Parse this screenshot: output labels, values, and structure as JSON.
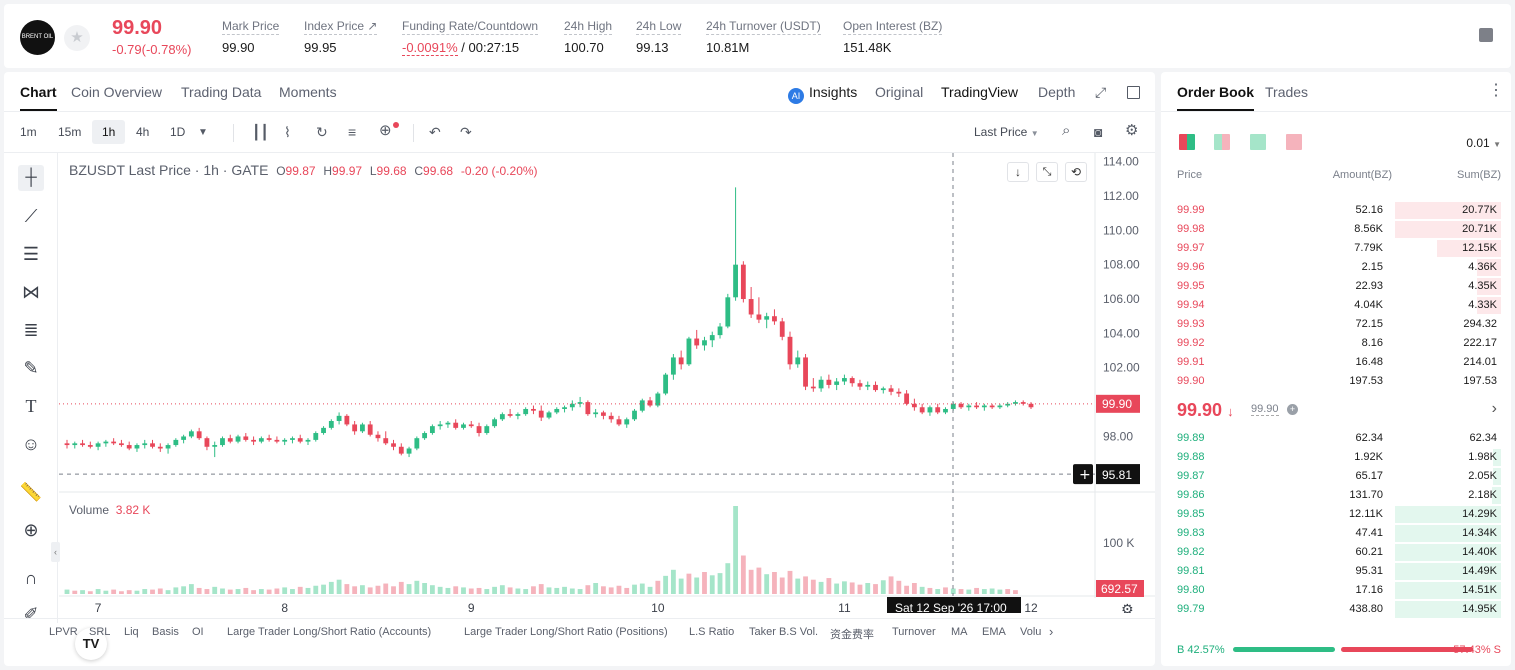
{
  "ticker": {
    "logo_text": "BRENT OIL",
    "last_price": "99.90",
    "change": "-0.79(-0.78%)",
    "stats": [
      {
        "label": "Mark Price",
        "value": "99.90"
      },
      {
        "label": "Index Price ↗",
        "value": "99.95"
      },
      {
        "label": "Funding Rate/Countdown",
        "value_red": "-0.0091%",
        "value": " / 00:27:15"
      },
      {
        "label": "24h High",
        "value": "100.70"
      },
      {
        "label": "24h Low",
        "value": "99.13"
      },
      {
        "label": "24h Turnover (USDT)",
        "value": "10.81M"
      },
      {
        "label": "Open Interest (BZ)",
        "value": "151.48K"
      }
    ]
  },
  "chart_tabs": [
    "Chart",
    "Coin Overview",
    "Trading Data",
    "Moments"
  ],
  "view_tabs": {
    "insights": "Insights",
    "original": "Original",
    "tradingview": "TradingView",
    "depth": "Depth"
  },
  "timeframes": [
    "1m",
    "15m",
    "1h",
    "4h",
    "1D"
  ],
  "price_type": "Last Price",
  "legend": {
    "symbol": "BZUSDT Last Price · 1h · GATE",
    "o_label": "O",
    "o": "99.87",
    "h_label": "H",
    "h": "99.97",
    "l_label": "L",
    "l": "99.68",
    "c_label": "C",
    "c": "99.68",
    "chg": "-0.20 (-0.20%)"
  },
  "volume_label": "Volume",
  "volume_value": "3.82 K",
  "crosshair_time": "Sat 12 Sep '26   17:00",
  "crosshair_price": "95.81",
  "last_price_tag": "99.90",
  "volume_tag": "692.57",
  "volume_axis_tick": "100 K",
  "indicators": [
    "LPVR",
    "SRL",
    "Liq",
    "Basis",
    "OI",
    "Large Trader Long/Short Ratio (Accounts)",
    "Large Trader Long/Short Ratio (Positions)",
    "L.S Ratio",
    "Taker B.S Vol.",
    "资金费率",
    "Turnover",
    "MA",
    "EMA",
    "Volu"
  ],
  "chart_data": {
    "type": "candlestick",
    "y_axis_ticks": [
      "114.00",
      "112.00",
      "110.00",
      "108.00",
      "106.00",
      "104.00",
      "102.00",
      "100.00",
      "98.00"
    ],
    "x_axis_ticks": [
      "7",
      "8",
      "9",
      "10",
      "11",
      "12"
    ],
    "ylim": [
      95.0,
      114.5
    ],
    "interval": "1h",
    "candles": [
      {
        "o": 97.6,
        "h": 97.8,
        "l": 97.3,
        "c": 97.5
      },
      {
        "o": 97.5,
        "h": 97.7,
        "l": 97.3,
        "c": 97.6
      },
      {
        "o": 97.6,
        "h": 97.8,
        "l": 97.4,
        "c": 97.5
      },
      {
        "o": 97.5,
        "h": 97.7,
        "l": 97.3,
        "c": 97.4
      },
      {
        "o": 97.4,
        "h": 97.7,
        "l": 97.2,
        "c": 97.6
      },
      {
        "o": 97.6,
        "h": 97.8,
        "l": 97.4,
        "c": 97.7
      },
      {
        "o": 97.7,
        "h": 97.9,
        "l": 97.5,
        "c": 97.6
      },
      {
        "o": 97.6,
        "h": 97.8,
        "l": 97.4,
        "c": 97.5
      },
      {
        "o": 97.5,
        "h": 97.7,
        "l": 97.2,
        "c": 97.3
      },
      {
        "o": 97.3,
        "h": 97.6,
        "l": 97.1,
        "c": 97.5
      },
      {
        "o": 97.5,
        "h": 97.8,
        "l": 97.3,
        "c": 97.6
      },
      {
        "o": 97.6,
        "h": 97.8,
        "l": 97.3,
        "c": 97.4
      },
      {
        "o": 97.4,
        "h": 97.6,
        "l": 97.1,
        "c": 97.3
      },
      {
        "o": 97.3,
        "h": 97.6,
        "l": 97.0,
        "c": 97.5
      },
      {
        "o": 97.5,
        "h": 97.9,
        "l": 97.4,
        "c": 97.8
      },
      {
        "o": 97.8,
        "h": 98.1,
        "l": 97.6,
        "c": 98.0
      },
      {
        "o": 98.0,
        "h": 98.4,
        "l": 97.9,
        "c": 98.3
      },
      {
        "o": 98.3,
        "h": 98.5,
        "l": 97.8,
        "c": 97.9
      },
      {
        "o": 97.9,
        "h": 98.0,
        "l": 97.2,
        "c": 97.4
      },
      {
        "o": 97.4,
        "h": 97.7,
        "l": 96.8,
        "c": 97.5
      },
      {
        "o": 97.5,
        "h": 98.0,
        "l": 97.4,
        "c": 97.9
      },
      {
        "o": 97.9,
        "h": 98.1,
        "l": 97.6,
        "c": 97.7
      },
      {
        "o": 97.7,
        "h": 98.1,
        "l": 97.6,
        "c": 98.0
      },
      {
        "o": 98.0,
        "h": 98.2,
        "l": 97.7,
        "c": 97.8
      },
      {
        "o": 97.8,
        "h": 98.0,
        "l": 97.5,
        "c": 97.7
      },
      {
        "o": 97.7,
        "h": 98.0,
        "l": 97.6,
        "c": 97.9
      },
      {
        "o": 97.9,
        "h": 98.1,
        "l": 97.7,
        "c": 97.8
      },
      {
        "o": 97.8,
        "h": 98.0,
        "l": 97.6,
        "c": 97.7
      },
      {
        "o": 97.7,
        "h": 97.9,
        "l": 97.5,
        "c": 97.8
      },
      {
        "o": 97.8,
        "h": 98.0,
        "l": 97.6,
        "c": 97.9
      },
      {
        "o": 97.9,
        "h": 98.1,
        "l": 97.6,
        "c": 97.7
      },
      {
        "o": 97.7,
        "h": 97.9,
        "l": 97.5,
        "c": 97.8
      },
      {
        "o": 97.8,
        "h": 98.3,
        "l": 97.7,
        "c": 98.2
      },
      {
        "o": 98.2,
        "h": 98.6,
        "l": 98.1,
        "c": 98.5
      },
      {
        "o": 98.5,
        "h": 99.0,
        "l": 98.4,
        "c": 98.9
      },
      {
        "o": 98.9,
        "h": 99.4,
        "l": 98.7,
        "c": 99.2
      },
      {
        "o": 99.2,
        "h": 99.3,
        "l": 98.6,
        "c": 98.7
      },
      {
        "o": 98.7,
        "h": 98.9,
        "l": 98.1,
        "c": 98.3
      },
      {
        "o": 98.3,
        "h": 98.8,
        "l": 98.2,
        "c": 98.7
      },
      {
        "o": 98.7,
        "h": 98.9,
        "l": 98.0,
        "c": 98.1
      },
      {
        "o": 98.1,
        "h": 98.3,
        "l": 97.7,
        "c": 97.9
      },
      {
        "o": 97.9,
        "h": 98.3,
        "l": 97.5,
        "c": 97.6
      },
      {
        "o": 97.6,
        "h": 97.8,
        "l": 97.2,
        "c": 97.4
      },
      {
        "o": 97.4,
        "h": 97.6,
        "l": 96.9,
        "c": 97.0
      },
      {
        "o": 97.0,
        "h": 97.4,
        "l": 96.8,
        "c": 97.3
      },
      {
        "o": 97.3,
        "h": 98.0,
        "l": 97.2,
        "c": 97.9
      },
      {
        "o": 97.9,
        "h": 98.3,
        "l": 97.8,
        "c": 98.2
      },
      {
        "o": 98.2,
        "h": 98.7,
        "l": 98.1,
        "c": 98.6
      },
      {
        "o": 98.6,
        "h": 98.9,
        "l": 98.4,
        "c": 98.7
      },
      {
        "o": 98.7,
        "h": 98.9,
        "l": 98.5,
        "c": 98.8
      },
      {
        "o": 98.8,
        "h": 99.0,
        "l": 98.4,
        "c": 98.5
      },
      {
        "o": 98.5,
        "h": 98.8,
        "l": 98.4,
        "c": 98.7
      },
      {
        "o": 98.7,
        "h": 98.9,
        "l": 98.5,
        "c": 98.6
      },
      {
        "o": 98.6,
        "h": 98.8,
        "l": 98.0,
        "c": 98.2
      },
      {
        "o": 98.2,
        "h": 98.7,
        "l": 98.1,
        "c": 98.6
      },
      {
        "o": 98.6,
        "h": 99.1,
        "l": 98.5,
        "c": 99.0
      },
      {
        "o": 99.0,
        "h": 99.4,
        "l": 98.9,
        "c": 99.3
      },
      {
        "o": 99.3,
        "h": 99.6,
        "l": 99.1,
        "c": 99.2
      },
      {
        "o": 99.2,
        "h": 99.4,
        "l": 99.0,
        "c": 99.3
      },
      {
        "o": 99.3,
        "h": 99.7,
        "l": 99.2,
        "c": 99.6
      },
      {
        "o": 99.6,
        "h": 99.8,
        "l": 99.3,
        "c": 99.5
      },
      {
        "o": 99.5,
        "h": 99.8,
        "l": 98.9,
        "c": 99.1
      },
      {
        "o": 99.1,
        "h": 99.5,
        "l": 99.0,
        "c": 99.4
      },
      {
        "o": 99.4,
        "h": 99.7,
        "l": 99.3,
        "c": 99.6
      },
      {
        "o": 99.6,
        "h": 99.8,
        "l": 99.4,
        "c": 99.7
      },
      {
        "o": 99.7,
        "h": 100.1,
        "l": 99.5,
        "c": 99.9
      },
      {
        "o": 99.9,
        "h": 100.3,
        "l": 99.7,
        "c": 100.0
      },
      {
        "o": 100.0,
        "h": 100.1,
        "l": 99.2,
        "c": 99.3
      },
      {
        "o": 99.3,
        "h": 99.6,
        "l": 99.1,
        "c": 99.4
      },
      {
        "o": 99.4,
        "h": 99.5,
        "l": 99.0,
        "c": 99.2
      },
      {
        "o": 99.2,
        "h": 99.4,
        "l": 98.8,
        "c": 99.0
      },
      {
        "o": 99.0,
        "h": 99.2,
        "l": 98.6,
        "c": 98.7
      },
      {
        "o": 98.7,
        "h": 99.1,
        "l": 98.5,
        "c": 99.0
      },
      {
        "o": 99.0,
        "h": 99.6,
        "l": 98.9,
        "c": 99.5
      },
      {
        "o": 99.5,
        "h": 100.2,
        "l": 99.4,
        "c": 100.1
      },
      {
        "o": 100.1,
        "h": 100.3,
        "l": 99.7,
        "c": 99.8
      },
      {
        "o": 99.8,
        "h": 100.6,
        "l": 99.7,
        "c": 100.5
      },
      {
        "o": 100.5,
        "h": 101.7,
        "l": 100.4,
        "c": 101.6
      },
      {
        "o": 101.6,
        "h": 102.8,
        "l": 101.3,
        "c": 102.6
      },
      {
        "o": 102.6,
        "h": 103.0,
        "l": 101.9,
        "c": 102.2
      },
      {
        "o": 102.2,
        "h": 103.8,
        "l": 102.1,
        "c": 103.7
      },
      {
        "o": 103.7,
        "h": 104.2,
        "l": 103.1,
        "c": 103.3
      },
      {
        "o": 103.3,
        "h": 103.8,
        "l": 103.0,
        "c": 103.6
      },
      {
        "o": 103.6,
        "h": 104.1,
        "l": 103.2,
        "c": 103.9
      },
      {
        "o": 103.9,
        "h": 104.6,
        "l": 103.7,
        "c": 104.4
      },
      {
        "o": 104.4,
        "h": 106.3,
        "l": 104.3,
        "c": 106.1
      },
      {
        "o": 106.1,
        "h": 112.5,
        "l": 105.9,
        "c": 108.0
      },
      {
        "o": 108.0,
        "h": 108.2,
        "l": 105.8,
        "c": 106.0
      },
      {
        "o": 106.0,
        "h": 106.7,
        "l": 104.9,
        "c": 105.1
      },
      {
        "o": 105.1,
        "h": 106.1,
        "l": 104.6,
        "c": 104.8
      },
      {
        "o": 104.8,
        "h": 105.2,
        "l": 104.3,
        "c": 105.0
      },
      {
        "o": 105.0,
        "h": 105.4,
        "l": 104.5,
        "c": 104.7
      },
      {
        "o": 104.7,
        "h": 104.9,
        "l": 103.6,
        "c": 103.8
      },
      {
        "o": 103.8,
        "h": 104.1,
        "l": 101.9,
        "c": 102.2
      },
      {
        "o": 102.2,
        "h": 103.0,
        "l": 102.0,
        "c": 102.6
      },
      {
        "o": 102.6,
        "h": 102.8,
        "l": 100.7,
        "c": 100.9
      },
      {
        "o": 100.9,
        "h": 101.4,
        "l": 100.6,
        "c": 100.8
      },
      {
        "o": 100.8,
        "h": 101.5,
        "l": 100.6,
        "c": 101.3
      },
      {
        "o": 101.3,
        "h": 101.6,
        "l": 100.8,
        "c": 101.0
      },
      {
        "o": 101.0,
        "h": 101.4,
        "l": 100.7,
        "c": 101.2
      },
      {
        "o": 101.2,
        "h": 101.6,
        "l": 101.0,
        "c": 101.4
      },
      {
        "o": 101.4,
        "h": 101.5,
        "l": 100.9,
        "c": 101.1
      },
      {
        "o": 101.1,
        "h": 101.3,
        "l": 100.7,
        "c": 100.9
      },
      {
        "o": 100.9,
        "h": 101.2,
        "l": 100.7,
        "c": 101.0
      },
      {
        "o": 101.0,
        "h": 101.2,
        "l": 100.6,
        "c": 100.7
      },
      {
        "o": 100.7,
        "h": 100.9,
        "l": 100.5,
        "c": 100.8
      },
      {
        "o": 100.8,
        "h": 101.0,
        "l": 100.4,
        "c": 100.6
      },
      {
        "o": 100.6,
        "h": 100.8,
        "l": 100.3,
        "c": 100.5
      },
      {
        "o": 100.5,
        "h": 100.7,
        "l": 99.8,
        "c": 99.9
      },
      {
        "o": 99.9,
        "h": 100.2,
        "l": 99.5,
        "c": 99.7
      },
      {
        "o": 99.7,
        "h": 99.9,
        "l": 99.3,
        "c": 99.4
      },
      {
        "o": 99.4,
        "h": 99.8,
        "l": 99.2,
        "c": 99.7
      },
      {
        "o": 99.7,
        "h": 99.9,
        "l": 99.3,
        "c": 99.4
      },
      {
        "o": 99.4,
        "h": 99.7,
        "l": 99.3,
        "c": 99.6
      },
      {
        "o": 99.6,
        "h": 100.0,
        "l": 99.5,
        "c": 99.9
      },
      {
        "o": 99.9,
        "h": 100.0,
        "l": 99.6,
        "c": 99.7
      },
      {
        "o": 99.7,
        "h": 99.9,
        "l": 99.5,
        "c": 99.8
      },
      {
        "o": 99.8,
        "h": 100.0,
        "l": 99.6,
        "c": 99.7
      },
      {
        "o": 99.7,
        "h": 99.9,
        "l": 99.5,
        "c": 99.8
      },
      {
        "o": 99.8,
        "h": 99.9,
        "l": 99.6,
        "c": 99.7
      },
      {
        "o": 99.7,
        "h": 99.9,
        "l": 99.6,
        "c": 99.8
      },
      {
        "o": 99.8,
        "h": 100.0,
        "l": 99.7,
        "c": 99.9
      },
      {
        "o": 99.9,
        "h": 100.1,
        "l": 99.8,
        "c": 100.0
      },
      {
        "o": 100.0,
        "h": 100.1,
        "l": 99.8,
        "c": 99.9
      },
      {
        "o": 99.9,
        "h": 100.0,
        "l": 99.6,
        "c": 99.7
      }
    ],
    "volumes": [
      8,
      6,
      7,
      5,
      9,
      6,
      8,
      5,
      7,
      6,
      9,
      8,
      10,
      7,
      12,
      14,
      18,
      11,
      9,
      13,
      10,
      8,
      9,
      11,
      7,
      9,
      8,
      10,
      12,
      9,
      13,
      11,
      15,
      17,
      22,
      26,
      18,
      14,
      16,
      12,
      15,
      19,
      14,
      22,
      18,
      24,
      20,
      16,
      13,
      11,
      14,
      12,
      10,
      11,
      9,
      13,
      16,
      12,
      10,
      9,
      14,
      18,
      12,
      11,
      13,
      10,
      9,
      16,
      20,
      14,
      12,
      15,
      11,
      17,
      19,
      13,
      24,
      33,
      44,
      28,
      37,
      30,
      40,
      34,
      38,
      56,
      160,
      70,
      44,
      48,
      36,
      40,
      30,
      42,
      28,
      32,
      26,
      22,
      29,
      19,
      23,
      21,
      17,
      20,
      18,
      25,
      32,
      24,
      15,
      20,
      13,
      11,
      9,
      12,
      10,
      9,
      8,
      11,
      9,
      10,
      8,
      9,
      7
    ],
    "volume_up": [
      1,
      0,
      1,
      0,
      1,
      1,
      0,
      0,
      0,
      1,
      1,
      0,
      0,
      1,
      1,
      1,
      1,
      0,
      0,
      1,
      1,
      0,
      1,
      0,
      0,
      1,
      0,
      0,
      1,
      1,
      0,
      1,
      1,
      1,
      1,
      1,
      0,
      0,
      1,
      0,
      0,
      0,
      0,
      0,
      1,
      1,
      1,
      1,
      1,
      1,
      0,
      1,
      0,
      0,
      1,
      1,
      1,
      0,
      1,
      1,
      0,
      0,
      1,
      1,
      1,
      1,
      1,
      0,
      1,
      0,
      0,
      0,
      0,
      1,
      1,
      1,
      0,
      1,
      1,
      1,
      0,
      1,
      0,
      1,
      1,
      1,
      1,
      0,
      0,
      0,
      1,
      0,
      0,
      0,
      1,
      0,
      0,
      1,
      0,
      1,
      1,
      0,
      0,
      1,
      0,
      1,
      0,
      0,
      0,
      0,
      1,
      0,
      1,
      0,
      1,
      0,
      1,
      0,
      1,
      1,
      1,
      0,
      0
    ],
    "crosshair_y_value": 95.81
  },
  "order_book": {
    "tabs": [
      "Order Book",
      "Trades"
    ],
    "precision": "0.01",
    "headers": {
      "price": "Price",
      "amount": "Amount(BZ)",
      "sum": "Sum(BZ)"
    },
    "asks": [
      {
        "price": "99.99",
        "amount": "52.16",
        "sum": "20.77K",
        "depth": 0.9
      },
      {
        "price": "99.98",
        "amount": "8.56K",
        "sum": "20.71K",
        "depth": 0.9
      },
      {
        "price": "99.97",
        "amount": "7.79K",
        "sum": "12.15K",
        "depth": 0.54
      },
      {
        "price": "99.96",
        "amount": "2.15",
        "sum": "4.36K",
        "depth": 0.2
      },
      {
        "price": "99.95",
        "amount": "22.93",
        "sum": "4.35K",
        "depth": 0.2
      },
      {
        "price": "99.94",
        "amount": "4.04K",
        "sum": "4.33K",
        "depth": 0.2
      },
      {
        "price": "99.93",
        "amount": "72.15",
        "sum": "294.32",
        "depth": 0.0
      },
      {
        "price": "99.92",
        "amount": "8.16",
        "sum": "222.17",
        "depth": 0.0
      },
      {
        "price": "99.91",
        "amount": "16.48",
        "sum": "214.01",
        "depth": 0.0
      },
      {
        "price": "99.90",
        "amount": "197.53",
        "sum": "197.53",
        "depth": 0.0
      }
    ],
    "mid_price": "99.90",
    "mid_mark": "99.90",
    "bids": [
      {
        "price": "99.89",
        "amount": "62.34",
        "sum": "62.34",
        "depth": 0.0
      },
      {
        "price": "99.88",
        "amount": "1.92K",
        "sum": "1.98K",
        "depth": 0.07
      },
      {
        "price": "99.87",
        "amount": "65.17",
        "sum": "2.05K",
        "depth": 0.07
      },
      {
        "price": "99.86",
        "amount": "131.70",
        "sum": "2.18K",
        "depth": 0.08
      },
      {
        "price": "99.85",
        "amount": "12.11K",
        "sum": "14.29K",
        "depth": 0.9
      },
      {
        "price": "99.83",
        "amount": "47.41",
        "sum": "14.34K",
        "depth": 0.9
      },
      {
        "price": "99.82",
        "amount": "60.21",
        "sum": "14.40K",
        "depth": 0.9
      },
      {
        "price": "99.81",
        "amount": "95.31",
        "sum": "14.49K",
        "depth": 0.9
      },
      {
        "price": "99.80",
        "amount": "17.16",
        "sum": "14.51K",
        "depth": 0.9
      },
      {
        "price": "99.79",
        "amount": "438.80",
        "sum": "14.95K",
        "depth": 0.9
      }
    ],
    "buy_ratio_label": "B 42.57%",
    "sell_ratio_label": "57.43% S",
    "buy_ratio": 0.4257
  },
  "colors": {
    "up": "#2ebd85",
    "down": "#e8475a",
    "up_vol": "#a5e5c9",
    "down_vol": "#f5b3bc"
  }
}
